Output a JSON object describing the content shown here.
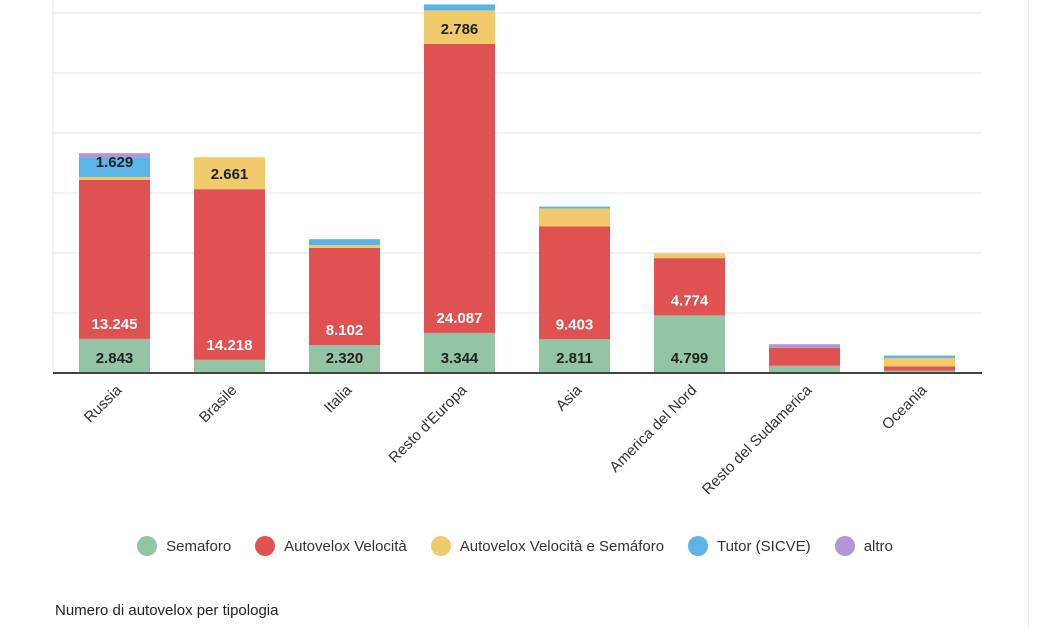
{
  "chart_data": {
    "type": "bar",
    "stacked": true,
    "title": "",
    "caption": "Numero di autovelox per tipologia",
    "categories": [
      "Russia",
      "Brasile",
      "Italia",
      "Resto d'Europa",
      "Asia",
      "America del Nord",
      "Resto del Sudamerica",
      "Oceania"
    ],
    "series": [
      {
        "name": "Semaforo",
        "color": "#93c5a5",
        "values": [
          2843,
          1100,
          2320,
          3344,
          2811,
          4799,
          600,
          200
        ],
        "labels": [
          "2.843",
          "",
          "2.320",
          "3.344",
          "2.811",
          "4.799",
          "",
          ""
        ]
      },
      {
        "name": "Autovelox Velocità",
        "color": "#e05252",
        "values": [
          13245,
          14218,
          8102,
          24087,
          9403,
          4774,
          1500,
          350
        ],
        "labels": [
          "13.245",
          "14.218",
          "8.102",
          "24.087",
          "9.403",
          "4.774",
          "",
          ""
        ]
      },
      {
        "name": "Autovelox Velocità e Semáforo",
        "color": "#f1cb6b",
        "values": [
          250,
          2661,
          230,
          2786,
          1500,
          400,
          0,
          700
        ],
        "labels": [
          "",
          "2.661",
          "",
          "2.786",
          "",
          "",
          "",
          ""
        ]
      },
      {
        "name": "Tutor (SICVE)",
        "color": "#5ab4e8",
        "values": [
          1629,
          0,
          500,
          500,
          150,
          0,
          0,
          200
        ],
        "labels": [
          "1.629",
          "",
          "",
          "",
          "",
          "",
          "",
          ""
        ]
      },
      {
        "name": "altro",
        "color": "#b197d6",
        "values": [
          350,
          0,
          0,
          0,
          0,
          0,
          300,
          0
        ],
        "labels": [
          "",
          "",
          "",
          "",
          "",
          "",
          "",
          ""
        ]
      }
    ],
    "ylim": [
      0,
      30000
    ],
    "grid": true,
    "legend_position": "bottom"
  }
}
